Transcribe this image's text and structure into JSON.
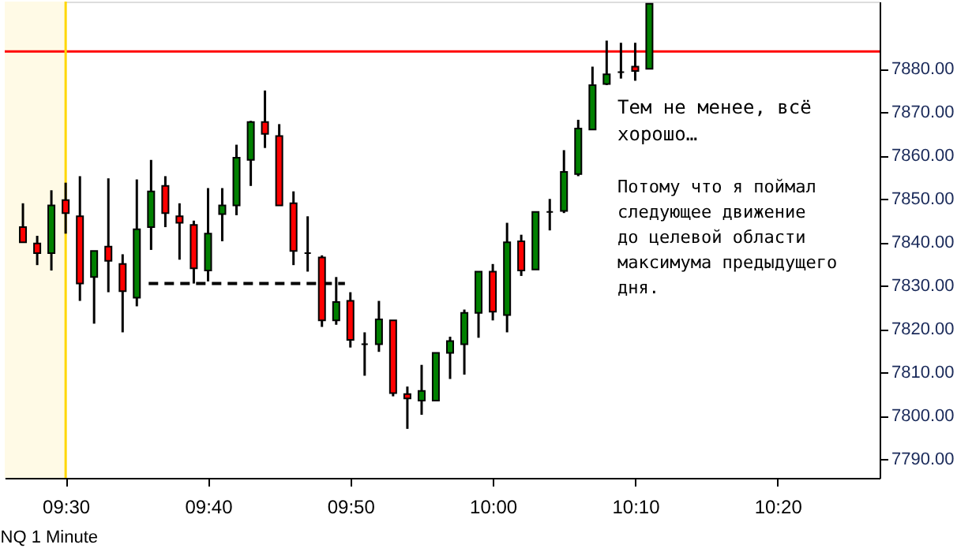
{
  "chart_data": {
    "type": "candlestick",
    "x": [
      9.45,
      9.4667,
      9.4833,
      9.5,
      9.5167,
      9.5333,
      9.55,
      9.5667,
      9.5833,
      9.6,
      9.6167,
      9.6333,
      9.65,
      9.6667,
      9.6833,
      9.7,
      9.7167,
      9.7333,
      9.75,
      9.7667,
      9.7833,
      9.8,
      9.8167,
      9.8333,
      9.85,
      9.8667,
      9.8833,
      9.9,
      9.9167,
      9.9333,
      9.95,
      9.9667,
      9.9833,
      10.0,
      10.0167,
      10.0333,
      10.05,
      10.0667,
      10.0833,
      10.1,
      10.1167,
      10.1333,
      10.15,
      10.1667,
      10.1833
    ],
    "ohlc": [
      [
        7843.5,
        7849,
        7840,
        7840
      ],
      [
        7839.75,
        7841.5,
        7834.75,
        7837.5
      ],
      [
        7837.5,
        7852,
        7833.5,
        7848.5
      ],
      [
        7849.75,
        7853.75,
        7842,
        7846.75
      ],
      [
        7846,
        7855.25,
        7826.5,
        7830.5
      ],
      [
        7832,
        7838,
        7821.25,
        7838
      ],
      [
        7839,
        7854.75,
        7828.5,
        7835.75
      ],
      [
        7835,
        7837.25,
        7819.25,
        7828.75
      ],
      [
        7827.25,
        7854.5,
        7825.25,
        7843
      ],
      [
        7843.5,
        7859,
        7838.25,
        7851.75
      ],
      [
        7853,
        7855.25,
        7843.5,
        7846.75
      ],
      [
        7846,
        7849,
        7836,
        7844.5
      ],
      [
        7844,
        7845,
        7830.5,
        7834
      ],
      [
        7833.5,
        7852.5,
        7831,
        7842
      ],
      [
        7846.5,
        7852.5,
        7840.25,
        7848.5
      ],
      [
        7848.5,
        7862.5,
        7846.25,
        7859.5
      ],
      [
        7859,
        7868,
        7853,
        7867.75
      ],
      [
        7867.75,
        7875,
        7861.75,
        7865
      ],
      [
        7864.5,
        7867.25,
        7848.5,
        7848.5
      ],
      [
        7849,
        7851.75,
        7834.75,
        7838
      ],
      [
        7837.5,
        7846,
        7833.25,
        7837.5
      ],
      [
        7836.5,
        7837,
        7820.5,
        7822
      ],
      [
        7822,
        7832,
        7821,
        7826.25
      ],
      [
        7826.5,
        7828.5,
        7815.75,
        7817.5
      ],
      [
        7816.5,
        7819.25,
        7809.25,
        7816.5
      ],
      [
        7816.5,
        7826.5,
        7814.75,
        7822.25
      ],
      [
        7822,
        7822,
        7804.5,
        7805.25
      ],
      [
        7805,
        7806.75,
        7797,
        7804
      ],
      [
        7803.5,
        7811.75,
        7800.25,
        7805.75
      ],
      [
        7803.5,
        7814.5,
        7803.5,
        7814.5
      ],
      [
        7814.5,
        7818.25,
        7808.5,
        7817.25
      ],
      [
        7816.5,
        7824.5,
        7809.5,
        7823.75
      ],
      [
        7823.75,
        7833.25,
        7818,
        7833.25
      ],
      [
        7833.25,
        7835,
        7822,
        7824
      ],
      [
        7823.25,
        7844.5,
        7819.25,
        7840
      ],
      [
        7840.25,
        7841.75,
        7832.25,
        7833.5
      ],
      [
        7833.75,
        7847,
        7833.75,
        7847
      ],
      [
        7847,
        7850,
        7842.75,
        7847
      ],
      [
        7847.25,
        7861.25,
        7846.75,
        7856.25
      ],
      [
        7855.75,
        7868.25,
        7855.25,
        7866.25
      ],
      [
        7866,
        7880.5,
        7866,
        7876.25
      ],
      [
        7876.5,
        7886.5,
        7876.25,
        7878.75
      ],
      [
        7879.25,
        7886,
        7877.75,
        7879.25
      ],
      [
        7880.5,
        7886,
        7877.25,
        7879.5
      ],
      [
        7880,
        7895,
        7880,
        7895
      ]
    ],
    "colors": [
      "#ff0000",
      "#ff0000",
      "#008000",
      "#ff0000",
      "#ff0000",
      "#008000",
      "#ff0000",
      "#ff0000",
      "#008000",
      "#008000",
      "#ff0000",
      "#ff0000",
      "#ff0000",
      "#008000",
      "#008000",
      "#008000",
      "#008000",
      "#ff0000",
      "#ff0000",
      "#ff0000",
      "#000000",
      "#ff0000",
      "#008000",
      "#ff0000",
      "#000000",
      "#008000",
      "#ff0000",
      "#ff0000",
      "#008000",
      "#008000",
      "#008000",
      "#008000",
      "#008000",
      "#ff0000",
      "#008000",
      "#ff0000",
      "#008000",
      "#000000",
      "#008000",
      "#008000",
      "#008000",
      "#008000",
      "#000000",
      "#ff0000",
      "#008000"
    ],
    "series": [
      {
        "type": "line",
        "x": [
          9.5972,
          9.8269
        ],
        "values": [
          7830.5,
          7830.5
        ],
        "color": "#000000",
        "line_style": "dashed"
      }
    ],
    "ref_lines": [
      {
        "axis": "y",
        "value": 7884,
        "color": "#ff0000"
      },
      {
        "axis": "x",
        "value": 9.5,
        "color": "#ffd700"
      }
    ],
    "bands": [
      {
        "axis": "x",
        "from": 9.4287,
        "to": 9.5,
        "color": "#fffae6"
      }
    ],
    "xlim": [
      9.4287,
      10.4528
    ],
    "xticks": [
      {
        "value": 9.5,
        "label": "09:30"
      },
      {
        "value": 9.6667,
        "label": "09:40"
      },
      {
        "value": 9.8333,
        "label": "09:50"
      },
      {
        "value": 10.0,
        "label": "10:00"
      },
      {
        "value": 10.1667,
        "label": "10:10"
      },
      {
        "value": 10.3333,
        "label": "10:20"
      }
    ],
    "ylim": [
      7785.7,
      7895.5
    ],
    "yticks": [
      {
        "value": 7790,
        "label": "7790.00"
      },
      {
        "value": 7800,
        "label": "7800.00"
      },
      {
        "value": 7810,
        "label": "7810.00"
      },
      {
        "value": 7820,
        "label": "7820.00"
      },
      {
        "value": 7830,
        "label": "7830.00"
      },
      {
        "value": 7840,
        "label": "7840.00"
      },
      {
        "value": 7850,
        "label": "7850.00"
      },
      {
        "value": 7860,
        "label": "7860.00"
      },
      {
        "value": 7870,
        "label": "7870.00"
      },
      {
        "value": 7880,
        "label": "7880.00"
      }
    ],
    "annotations": [
      "Тем не менее, всё\nхорошо…",
      "Потому что я поймал\nследующее движение\nдо целевой области\nмаксимума предыдущего\nдня.",
      "NQ 1 Minute"
    ],
    "grid": false
  }
}
